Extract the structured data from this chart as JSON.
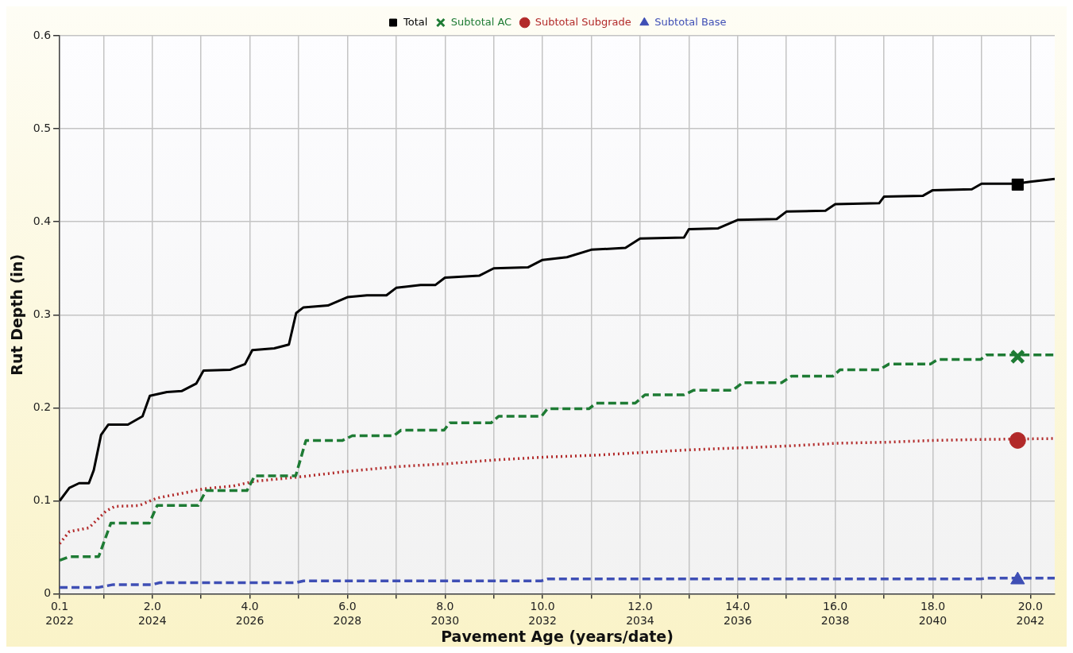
{
  "chart_data": {
    "type": "line",
    "xlabel": "Pavement Age (years/date)",
    "ylabel": "Rut Depth (in)",
    "xlim": [
      0.1,
      20.5
    ],
    "ylim": [
      0,
      0.6
    ],
    "xticks": [
      0.1,
      {
        "value": 1,
        "label": null
      },
      {
        "value": 2,
        "label": "2.0"
      },
      {
        "value": 3,
        "label": null
      },
      {
        "value": 4,
        "label": "4.0"
      },
      {
        "value": 5,
        "label": null
      },
      {
        "value": 6,
        "label": "6.0"
      },
      {
        "value": 7,
        "label": null
      },
      {
        "value": 8,
        "label": "8.0"
      },
      {
        "value": 9,
        "label": null
      },
      {
        "value": 10,
        "label": "10.0"
      },
      {
        "value": 11,
        "label": null
      },
      {
        "value": 12,
        "label": "12.0"
      },
      {
        "value": 13,
        "label": null
      },
      {
        "value": 14,
        "label": "14.0"
      },
      {
        "value": 15,
        "label": null
      },
      {
        "value": 16,
        "label": "16.0"
      },
      {
        "value": 17,
        "label": null
      },
      {
        "value": 18,
        "label": "18.0"
      },
      {
        "value": 19,
        "label": null
      },
      {
        "value": 20,
        "label": "20.0"
      }
    ],
    "x2lim": [
      2022.1,
      2042.5
    ],
    "x2ticks": [
      {
        "value": 2022.1,
        "label": "2022"
      },
      2024,
      2026,
      2028,
      2030,
      2032,
      2034,
      2036,
      2038,
      2040,
      2042
    ],
    "yticks": [
      0,
      0.1,
      0.2,
      0.3,
      0.4,
      0.5,
      0.6
    ],
    "grid": true,
    "legend": "top",
    "series": [
      {
        "name": "Total",
        "color": "#000000",
        "line_style": "solid",
        "x": [
          0.1,
          0.3,
          0.5,
          0.7,
          0.8,
          0.95,
          1.1,
          1.5,
          1.8,
          1.95,
          2.3,
          2.6,
          2.9,
          3.05,
          3.6,
          3.9,
          4.05,
          4.5,
          4.8,
          4.95,
          5.1,
          5.6,
          6.0,
          6.4,
          6.8,
          7.0,
          7.5,
          7.8,
          8.0,
          8.7,
          9.0,
          9.7,
          10.0,
          10.5,
          11.0,
          11.7,
          12.0,
          12.9,
          13.0,
          13.6,
          14.0,
          14.8,
          15.0,
          15.8,
          16.0,
          16.9,
          17.0,
          17.8,
          18.0,
          18.8,
          19.0,
          19.7,
          20.0,
          20.5
        ],
        "values": [
          0.1,
          0.114,
          0.119,
          0.119,
          0.133,
          0.171,
          0.182,
          0.182,
          0.191,
          0.213,
          0.217,
          0.218,
          0.226,
          0.24,
          0.241,
          0.247,
          0.262,
          0.264,
          0.268,
          0.302,
          0.308,
          0.31,
          0.319,
          0.321,
          0.321,
          0.329,
          0.332,
          0.332,
          0.34,
          0.342,
          0.35,
          0.351,
          0.359,
          0.362,
          0.37,
          0.372,
          0.382,
          0.383,
          0.392,
          0.393,
          0.402,
          0.403,
          0.411,
          0.412,
          0.419,
          0.42,
          0.427,
          0.428,
          0.434,
          0.435,
          0.441,
          0.441,
          0.443,
          0.446
        ]
      },
      {
        "name": "Subtotal AC",
        "color": "#1e7b34",
        "line_style": "dashed",
        "x": [
          0.1,
          0.3,
          0.9,
          1.15,
          1.94,
          2.1,
          2.94,
          3.1,
          3.94,
          4.1,
          4.94,
          5.15,
          5.9,
          6.1,
          6.95,
          7.1,
          7.98,
          8.1,
          8.95,
          9.1,
          9.98,
          10.1,
          10.95,
          11.1,
          11.9,
          12.1,
          12.9,
          13.1,
          13.9,
          14.1,
          14.9,
          15.1,
          15.95,
          16.1,
          16.9,
          17.1,
          17.95,
          18.1,
          18.98,
          19.1,
          20.5
        ],
        "values": [
          0.036,
          0.04,
          0.04,
          0.076,
          0.076,
          0.095,
          0.095,
          0.111,
          0.111,
          0.127,
          0.127,
          0.165,
          0.165,
          0.17,
          0.17,
          0.176,
          0.176,
          0.184,
          0.184,
          0.191,
          0.191,
          0.199,
          0.199,
          0.205,
          0.205,
          0.214,
          0.214,
          0.219,
          0.219,
          0.227,
          0.227,
          0.234,
          0.234,
          0.241,
          0.241,
          0.247,
          0.247,
          0.252,
          0.252,
          0.257,
          0.257
        ]
      },
      {
        "name": "Subtotal Subgrade",
        "color": "#b22a2a",
        "line_style": "dotted",
        "x": [
          0.1,
          0.3,
          0.7,
          1.05,
          1.23,
          1.73,
          2.09,
          2.7,
          3.06,
          3.66,
          4.09,
          5.06,
          6.04,
          7.08,
          8.06,
          9.03,
          10.03,
          11.05,
          12.05,
          13.05,
          14.06,
          15.03,
          16.06,
          17.03,
          18.01,
          18.95,
          20.5
        ],
        "values": [
          0.054,
          0.067,
          0.071,
          0.089,
          0.094,
          0.095,
          0.103,
          0.109,
          0.113,
          0.116,
          0.121,
          0.126,
          0.132,
          0.137,
          0.14,
          0.144,
          0.147,
          0.149,
          0.152,
          0.155,
          0.157,
          0.159,
          0.162,
          0.163,
          0.165,
          0.166,
          0.167
        ]
      },
      {
        "name": "Subtotal Base",
        "color": "#3f4fb5",
        "line_style": "dashed",
        "x": [
          0.1,
          0.9,
          1.2,
          2.0,
          2.15,
          4.94,
          5.1,
          9.98,
          10.1,
          18.98,
          19.1,
          20.5
        ],
        "values": [
          0.007,
          0.007,
          0.01,
          0.01,
          0.012,
          0.012,
          0.014,
          0.014,
          0.016,
          0.016,
          0.017,
          0.017
        ]
      },
      {
        "type": "scatter",
        "marker": "square",
        "color": "#000000",
        "x": [
          19.74
        ],
        "values": [
          0.44
        ]
      },
      {
        "type": "scatter",
        "marker": "cross",
        "color": "#1e7b34",
        "x": [
          19.74
        ],
        "values": [
          0.255
        ]
      },
      {
        "type": "scatter",
        "marker": "circle",
        "color": "#b22a2a",
        "x": [
          19.74
        ],
        "values": [
          0.165
        ]
      },
      {
        "type": "scatter",
        "marker": "triangle",
        "color": "#3f4fb5",
        "x": [
          19.74
        ],
        "values": [
          0.015
        ]
      }
    ]
  }
}
